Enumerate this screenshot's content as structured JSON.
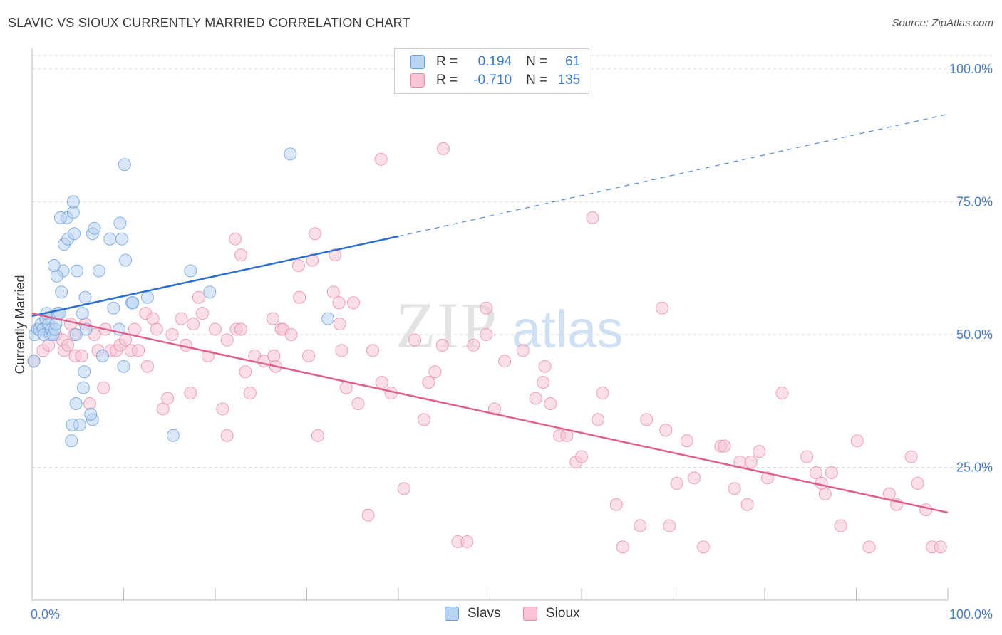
{
  "header": {
    "title": "SLAVIC VS SIOUX CURRENTLY MARRIED CORRELATION CHART",
    "source": "Source: ZipAtlas.com"
  },
  "legend_stats": [
    {
      "r_label": "R =",
      "r_value": "0.194",
      "n_label": "N =",
      "n_value": "61"
    },
    {
      "r_label": "R =",
      "r_value": "-0.710",
      "n_label": "N =",
      "n_value": "135"
    }
  ],
  "bottom_legend": [
    "Slavs",
    "Sioux"
  ],
  "colors": {
    "slavs_fill": "#b9d3f3",
    "slavs_stroke": "#6b9fdc",
    "slavs_line": "#2b6fcf",
    "sioux_fill": "#f8c4d4",
    "sioux_stroke": "#e88aa9",
    "sioux_line": "#e0608d",
    "tick": "#4a7cc7",
    "grid": "#d8d8d8"
  },
  "chart_data": {
    "type": "scatter",
    "title": "SLAVIC VS SIOUX CURRENTLY MARRIED CORRELATION CHART",
    "xlabel": "",
    "ylabel": "Currently Married",
    "xlim": [
      0,
      100
    ],
    "ylim": [
      0,
      100
    ],
    "x_tick_labels": [
      "0.0%",
      "100.0%"
    ],
    "y_tick_labels": [
      "25.0%",
      "50.0%",
      "75.0%",
      "100.0%"
    ],
    "y_ticks": [
      25,
      50,
      75,
      100
    ],
    "grid": true,
    "legend_position": "top-center",
    "series": [
      {
        "name": "Slavs",
        "r": 0.194,
        "n": 61,
        "trend": {
          "x0": 0,
          "y0": 53.5,
          "x1": 40,
          "y1": 68.5,
          "dashed_to": 100,
          "dashed_y": 91.5
        },
        "points": [
          [
            0.2,
            45
          ],
          [
            0.3,
            50
          ],
          [
            0.6,
            51
          ],
          [
            0.8,
            51
          ],
          [
            1,
            52
          ],
          [
            1.2,
            51
          ],
          [
            1.3,
            50
          ],
          [
            1.5,
            53
          ],
          [
            1.6,
            54
          ],
          [
            1.8,
            52
          ],
          [
            2,
            50
          ],
          [
            2.1,
            51
          ],
          [
            2.3,
            50
          ],
          [
            2.5,
            51
          ],
          [
            2.6,
            52
          ],
          [
            2.8,
            54
          ],
          [
            3,
            54
          ],
          [
            3.2,
            58
          ],
          [
            3.4,
            62
          ],
          [
            2.7,
            61
          ],
          [
            2.4,
            63
          ],
          [
            3.5,
            67
          ],
          [
            3.9,
            68
          ],
          [
            3.8,
            72
          ],
          [
            3.1,
            72
          ],
          [
            4.5,
            73
          ],
          [
            4.6,
            69
          ],
          [
            4.5,
            75
          ],
          [
            4.8,
            50
          ],
          [
            4.9,
            62
          ],
          [
            5.5,
            54
          ],
          [
            5.8,
            57
          ],
          [
            5.9,
            51
          ],
          [
            5.7,
            43
          ],
          [
            5.6,
            40
          ],
          [
            4.8,
            37
          ],
          [
            6.6,
            34
          ],
          [
            6.4,
            35
          ],
          [
            6.6,
            69
          ],
          [
            6.8,
            70
          ],
          [
            7.3,
            62
          ],
          [
            7.7,
            46
          ],
          [
            8.5,
            68
          ],
          [
            8.9,
            55
          ],
          [
            9.5,
            51
          ],
          [
            9.6,
            71
          ],
          [
            9.8,
            68
          ],
          [
            10,
            44
          ],
          [
            10.2,
            64
          ],
          [
            10.9,
            56
          ],
          [
            11,
            56
          ],
          [
            12.6,
            57
          ],
          [
            15.4,
            31
          ],
          [
            17.3,
            62
          ],
          [
            19.4,
            58
          ],
          [
            28.2,
            84
          ],
          [
            10.1,
            82
          ],
          [
            32.3,
            53
          ],
          [
            5.2,
            33
          ],
          [
            4.3,
            30
          ],
          [
            4.4,
            33
          ]
        ]
      },
      {
        "name": "Sioux",
        "r": -0.71,
        "n": 135,
        "trend": {
          "x0": 0,
          "y0": 54,
          "x1": 100,
          "y1": 16.5
        },
        "points": [
          [
            0.2,
            45
          ],
          [
            1.2,
            47
          ],
          [
            1.8,
            48
          ],
          [
            2.6,
            50
          ],
          [
            3.3,
            49
          ],
          [
            3.5,
            47
          ],
          [
            3.9,
            48
          ],
          [
            4.2,
            52
          ],
          [
            4.6,
            50
          ],
          [
            4.7,
            46
          ],
          [
            5.4,
            46
          ],
          [
            5.8,
            52
          ],
          [
            6.3,
            37
          ],
          [
            6.8,
            50
          ],
          [
            7.2,
            47
          ],
          [
            7.8,
            40
          ],
          [
            8,
            51
          ],
          [
            8.6,
            47
          ],
          [
            9.2,
            47
          ],
          [
            9.6,
            48
          ],
          [
            10.2,
            49
          ],
          [
            10.8,
            47
          ],
          [
            11.2,
            51
          ],
          [
            11.6,
            47
          ],
          [
            12.6,
            44
          ],
          [
            12.4,
            54
          ],
          [
            13.2,
            53
          ],
          [
            13.6,
            51
          ],
          [
            14.3,
            36
          ],
          [
            14.8,
            38
          ],
          [
            15.3,
            50
          ],
          [
            16.3,
            53
          ],
          [
            16.8,
            48
          ],
          [
            17.3,
            39
          ],
          [
            17.6,
            52
          ],
          [
            18.2,
            57
          ],
          [
            18.6,
            54
          ],
          [
            19.2,
            46
          ],
          [
            20,
            51
          ],
          [
            20.8,
            36
          ],
          [
            21.3,
            31
          ],
          [
            21.3,
            49
          ],
          [
            22.3,
            51
          ],
          [
            22.8,
            51
          ],
          [
            23.3,
            43
          ],
          [
            23.8,
            39
          ],
          [
            24.3,
            46
          ],
          [
            25.3,
            45
          ],
          [
            26.4,
            46
          ],
          [
            26.6,
            44
          ],
          [
            27.2,
            51
          ],
          [
            26.3,
            53
          ],
          [
            27.4,
            51
          ],
          [
            28.3,
            50
          ],
          [
            29.2,
            57
          ],
          [
            30.6,
            64
          ],
          [
            30.9,
            69
          ],
          [
            30.2,
            46
          ],
          [
            31.2,
            31
          ],
          [
            32.9,
            58
          ],
          [
            33.6,
            52
          ],
          [
            34.3,
            40
          ],
          [
            35.6,
            37
          ],
          [
            36.7,
            16
          ],
          [
            38.2,
            41
          ],
          [
            39.2,
            39
          ],
          [
            40.6,
            21
          ],
          [
            41.8,
            49
          ],
          [
            42.8,
            34
          ],
          [
            43.3,
            41
          ],
          [
            44,
            43
          ],
          [
            44.8,
            48
          ],
          [
            46.5,
            11
          ],
          [
            47.5,
            11
          ],
          [
            48.2,
            48
          ],
          [
            49.6,
            55
          ],
          [
            50.5,
            36
          ],
          [
            51.6,
            45
          ],
          [
            53.6,
            47
          ],
          [
            55,
            38
          ],
          [
            55.8,
            41
          ],
          [
            56,
            44
          ],
          [
            57.6,
            31
          ],
          [
            58.4,
            31
          ],
          [
            59.4,
            26
          ],
          [
            60,
            27
          ],
          [
            61.8,
            34
          ],
          [
            62.3,
            39
          ],
          [
            63.8,
            18
          ],
          [
            64.5,
            10
          ],
          [
            66.4,
            14
          ],
          [
            67.1,
            34
          ],
          [
            68.8,
            55
          ],
          [
            69.6,
            14
          ],
          [
            70.4,
            22
          ],
          [
            71.5,
            30
          ],
          [
            72.3,
            23
          ],
          [
            73.3,
            10
          ],
          [
            75.2,
            29
          ],
          [
            75.6,
            29
          ],
          [
            76.7,
            21
          ],
          [
            77.3,
            26
          ],
          [
            78.1,
            18
          ],
          [
            78.5,
            26
          ],
          [
            79.4,
            28
          ],
          [
            80.3,
            23
          ],
          [
            81.9,
            39
          ],
          [
            84.6,
            27
          ],
          [
            85.6,
            24
          ],
          [
            86.2,
            22
          ],
          [
            86.6,
            20
          ],
          [
            87.3,
            24
          ],
          [
            88.3,
            14
          ],
          [
            90.1,
            30
          ],
          [
            91.4,
            10
          ],
          [
            93.6,
            20
          ],
          [
            94.4,
            18
          ],
          [
            96,
            27
          ],
          [
            96.7,
            22
          ],
          [
            97.6,
            17
          ],
          [
            98.3,
            10
          ],
          [
            99.2,
            10
          ],
          [
            44.9,
            85
          ],
          [
            38.1,
            83
          ],
          [
            61.2,
            72
          ],
          [
            22.2,
            68
          ],
          [
            22.8,
            65
          ],
          [
            33.1,
            65
          ],
          [
            33.5,
            56
          ],
          [
            35.1,
            56
          ],
          [
            29.1,
            63
          ],
          [
            49.6,
            50
          ],
          [
            37.2,
            47
          ],
          [
            33.8,
            47
          ],
          [
            56.6,
            37
          ],
          [
            69.2,
            32
          ]
        ]
      }
    ]
  }
}
